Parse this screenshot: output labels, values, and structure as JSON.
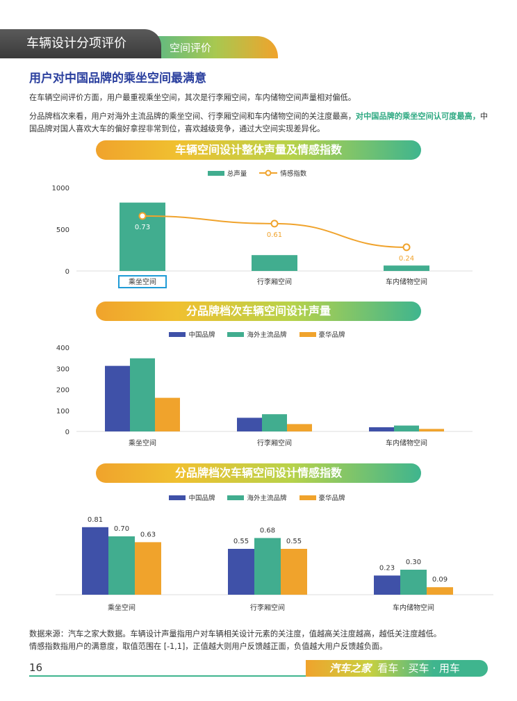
{
  "header": {
    "section": "车辆设计分项评价",
    "subsection": "空间评价"
  },
  "heading": "用户对中国品牌的乘坐空间最满意",
  "para1": "在车辆空间评价方面，用户最重视乘坐空间，其次是行李厢空间，车内储物空间声量相对偏低。",
  "para2": {
    "before": "分品牌档次来看，用户对海外主流品牌的乘坐空间、行李厢空间和车内储物空间的关注度最高，",
    "highlight": "对中国品牌的乘坐空间认可度最高，",
    "after": "中国品牌对国人喜欢大车的偏好拿捏非常到位，喜欢越级竞争，通过大空间实现差异化。"
  },
  "colors": {
    "green": "#41ad8f",
    "orange": "#f0a32c",
    "blue": "#3f51a8",
    "accent_text": "#2ea982"
  },
  "chart_data": [
    {
      "type": "bar",
      "title": "车辆空间设计整体声量及情感指数",
      "legend": [
        "总声量",
        "情感指数"
      ],
      "categories": [
        "乘坐空间",
        "行李厢空间",
        "车内储物空间"
      ],
      "series": [
        {
          "name": "总声量",
          "type": "bar",
          "values": [
            820,
            190,
            65
          ]
        },
        {
          "name": "情感指数",
          "type": "line",
          "values": [
            0.73,
            0.61,
            0.24
          ],
          "labels": [
            "0.73",
            "0.61",
            "0.24"
          ]
        }
      ],
      "ylim": [
        0,
        1000
      ],
      "yticks": [
        "1000",
        "500",
        "0"
      ],
      "highlighted_category": "乘坐空间"
    },
    {
      "type": "bar",
      "title": "分品牌档次车辆空间设计声量",
      "legend": [
        "中国品牌",
        "海外主流品牌",
        "豪华品牌"
      ],
      "categories": [
        "乘坐空间",
        "行李厢空间",
        "车内储物空间"
      ],
      "series": [
        {
          "name": "中国品牌",
          "values": [
            312,
            65,
            20
          ]
        },
        {
          "name": "海外主流品牌",
          "values": [
            348,
            82,
            28
          ]
        },
        {
          "name": "豪华品牌",
          "values": [
            160,
            35,
            12
          ]
        }
      ],
      "ylim": [
        0,
        400
      ],
      "yticks": [
        "400",
        "300",
        "200",
        "100",
        "0"
      ]
    },
    {
      "type": "bar",
      "title": "分品牌档次车辆空间设计情感指数",
      "legend": [
        "中国品牌",
        "海外主流品牌",
        "豪华品牌"
      ],
      "categories": [
        "乘坐空间",
        "行李厢空间",
        "车内储物空间"
      ],
      "series": [
        {
          "name": "中国品牌",
          "values": [
            0.81,
            0.55,
            0.23
          ],
          "labels": [
            "0.81",
            "0.55",
            "0.23"
          ]
        },
        {
          "name": "海外主流品牌",
          "values": [
            0.7,
            0.68,
            0.3
          ],
          "labels": [
            "0.70",
            "0.68",
            "0.30"
          ]
        },
        {
          "name": "豪华品牌",
          "values": [
            0.63,
            0.55,
            0.09
          ],
          "labels": [
            "0.63",
            "0.55",
            "0.09"
          ]
        }
      ],
      "ylim": [
        0,
        1
      ]
    }
  ],
  "source": {
    "line1": "数据来源：汽车之家大数据。车辆设计声量指用户对车辆相关设计元素的关注度，值越高关注度越高，越低关注度越低。",
    "line2": "情感指数指用户的满意度，取值范围在 [-1,1]，正值越大则用户反馈越正面，负值越大用户反馈越负面。"
  },
  "footer": {
    "page_number": "16",
    "brand": "汽车之家",
    "slogan": "看车 · 买车 · 用车"
  }
}
